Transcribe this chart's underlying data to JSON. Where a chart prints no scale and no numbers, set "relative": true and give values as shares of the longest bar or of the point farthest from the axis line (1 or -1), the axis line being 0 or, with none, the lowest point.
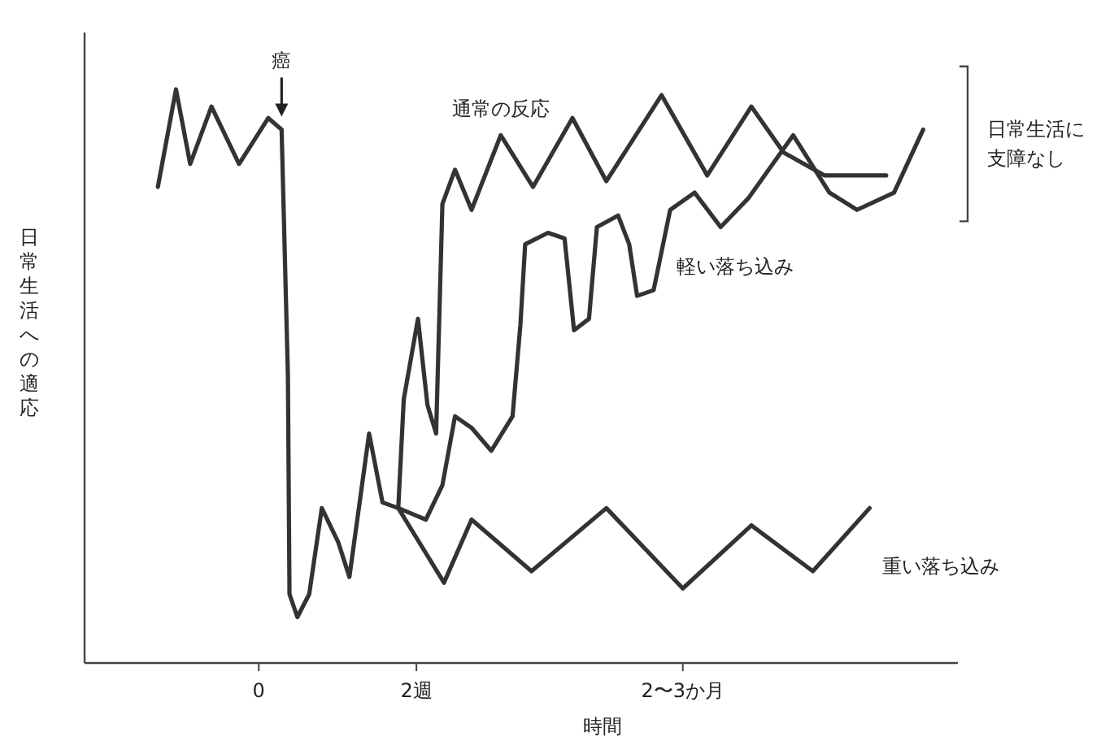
{
  "chart_data": {
    "type": "line",
    "relative": true,
    "xlabel": "時間",
    "ylabel": "日常生活への適応",
    "xlim": [
      -2.21,
      8.87
    ],
    "xticks": [
      {
        "value": 0,
        "label": "0"
      },
      {
        "value": 2,
        "label": "2週"
      },
      {
        "value": 5.38,
        "label": "2〜3か月"
      }
    ],
    "legend": false,
    "grid": false,
    "marker": "none",
    "line_style": "solid",
    "annotations": [
      {
        "text": "癌",
        "x": 0.29,
        "y": 0.93
      },
      "日常生活に",
      "支障なし"
    ],
    "series": [
      {
        "name": "重い落ち込み",
        "color": "#333333",
        "x": [
          -1.28,
          -1.05,
          -0.87,
          -0.6,
          -0.25,
          0.12,
          0.29,
          0.37,
          0.39,
          0.49,
          0.64,
          0.8,
          1.01,
          1.15,
          1.4,
          1.57,
          1.77,
          2.35,
          2.7,
          3.46,
          4.41,
          5.38,
          6.25,
          7.03,
          7.75
        ],
        "values": [
          0.83,
          1,
          0.87,
          0.97,
          0.87,
          0.95,
          0.93,
          0.5,
          0.12,
          0.08,
          0.12,
          0.27,
          0.21,
          0.15,
          0.4,
          0.28,
          0.27,
          0.14,
          0.25,
          0.16,
          0.27,
          0.13,
          0.24,
          0.16,
          0.27
        ]
      },
      {
        "name": "通常の反応",
        "color": "#333333",
        "x": [
          1.77,
          1.84,
          2.02,
          2.14,
          2.25,
          2.33,
          2.49,
          2.7,
          3.07,
          3.48,
          3.98,
          4.41,
          5.11,
          5.69,
          6.25,
          6.66,
          7.18,
          7.96
        ],
        "values": [
          0.27,
          0.46,
          0.6,
          0.45,
          0.4,
          0.8,
          0.86,
          0.79,
          0.92,
          0.83,
          0.95,
          0.84,
          0.99,
          0.85,
          0.97,
          0.89,
          0.85,
          0.85
        ]
      },
      {
        "name": "軽い落ち込み",
        "color": "#333333",
        "x": [
          1.77,
          2.12,
          2.33,
          2.49,
          2.7,
          2.95,
          3.22,
          3.32,
          3.38,
          3.67,
          3.88,
          4.0,
          4.19,
          4.29,
          4.56,
          4.7,
          4.8,
          5.01,
          5.22,
          5.53,
          5.86,
          6.21,
          6.78,
          7.24,
          7.59,
          8.06,
          8.43
        ],
        "values": [
          0.27,
          0.25,
          0.31,
          0.43,
          0.41,
          0.37,
          0.43,
          0.59,
          0.73,
          0.75,
          0.74,
          0.58,
          0.6,
          0.76,
          0.78,
          0.73,
          0.64,
          0.65,
          0.79,
          0.82,
          0.76,
          0.81,
          0.92,
          0.82,
          0.79,
          0.82,
          0.93
        ]
      }
    ]
  }
}
